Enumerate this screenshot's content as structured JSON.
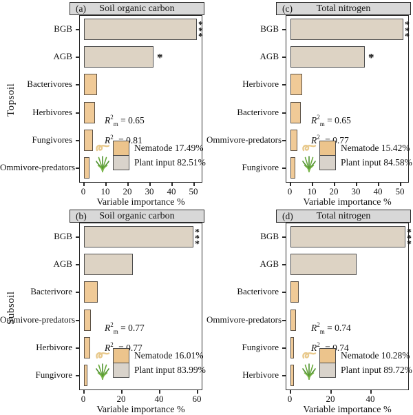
{
  "figure": {
    "row_labels": [
      "Topsoil",
      "Subsoil"
    ],
    "x_axis_title": "Variable importance %"
  },
  "colors": {
    "plant_bar": "#ddd3c4",
    "nematode_bar": "#f0ca97",
    "legend_plant_swatch": "#d9d3cb",
    "legend_nematode_swatch": "#ecc48c",
    "header_bg": "#d8d8d8",
    "border": "#2a2a2a",
    "worm_icon": "#e8c98c",
    "grass_icon": "#4e8f2f"
  },
  "chart_data": [
    {
      "id": "a",
      "type": "bar",
      "tag": "(a)",
      "title": "Soil organic carbon",
      "row": "Topsoil",
      "xlabel": "Variable importance %",
      "xlim": [
        0,
        53
      ],
      "xticks": [
        0,
        10,
        20,
        30,
        40,
        50
      ],
      "categories": [
        "BGB",
        "AGB",
        "Bacterivores",
        "Herbivores",
        "Fungivores",
        "Ommivore-predators"
      ],
      "values": [
        51,
        31.5,
        5.8,
        5.0,
        4.2,
        2.5
      ],
      "groups": [
        "plant",
        "plant",
        "nematode",
        "nematode",
        "nematode",
        "nematode"
      ],
      "significance": [
        "***",
        "*",
        "",
        "",
        "",
        ""
      ],
      "r2": [
        {
          "sub": "m",
          "val": "0.65"
        },
        {
          "sub": "c",
          "val": "0.81"
        }
      ],
      "legend": [
        {
          "icon": "nematode-icon",
          "key": "nematode",
          "label": "Nematode",
          "value": "17.49%",
          "color": "#ecc48c"
        },
        {
          "icon": "grass-icon",
          "key": "plant",
          "label": "Plant input",
          "value": "82.51%",
          "color": "#d9d3cb"
        }
      ]
    },
    {
      "id": "c",
      "type": "bar",
      "tag": "(c)",
      "title": "Total nitrogen",
      "row": "Topsoil",
      "xlabel": "Variable importance %",
      "xlim": [
        0,
        53
      ],
      "xticks": [
        0,
        10,
        20,
        30,
        40,
        50
      ],
      "categories": [
        "BGB",
        "AGB",
        "Herbivore",
        "Bacterivore",
        "Ommivore-predators",
        "Fungivore"
      ],
      "values": [
        51,
        33.6,
        5.2,
        4.7,
        3.2,
        2.3
      ],
      "groups": [
        "plant",
        "plant",
        "nematode",
        "nematode",
        "nematode",
        "nematode"
      ],
      "significance": [
        "***",
        "*",
        "",
        "",
        "",
        ""
      ],
      "r2": [
        {
          "sub": "m",
          "val": "0.65"
        },
        {
          "sub": "c",
          "val": "0.77"
        }
      ],
      "legend": [
        {
          "icon": "nematode-icon",
          "key": "nematode",
          "label": "Nematode",
          "value": "15.42%",
          "color": "#ecc48c"
        },
        {
          "icon": "grass-icon",
          "key": "plant",
          "label": "Plant input",
          "value": "84.58%",
          "color": "#d9d3cb"
        }
      ]
    },
    {
      "id": "b",
      "type": "bar",
      "tag": "(b)",
      "title": "Soil organic carbon",
      "row": "Subsoil",
      "xlabel": "Variable importance %",
      "xlim": [
        0,
        62
      ],
      "xticks": [
        0,
        20,
        40,
        60
      ],
      "categories": [
        "BGB",
        "AGB",
        "Bacterivore",
        "Ommivore-predators",
        "Herbivore",
        "Fungivore"
      ],
      "values": [
        58,
        26,
        7.4,
        3.7,
        3.1,
        1.8
      ],
      "groups": [
        "plant",
        "plant",
        "nematode",
        "nematode",
        "nematode",
        "nematode"
      ],
      "significance": [
        "***",
        "",
        "",
        "",
        "",
        ""
      ],
      "r2": [
        {
          "sub": "m",
          "val": "0.77"
        },
        {
          "sub": "c",
          "val": "0.77"
        }
      ],
      "legend": [
        {
          "icon": "nematode-icon",
          "key": "nematode",
          "label": "Nematode",
          "value": "16.01%",
          "color": "#ecc48c"
        },
        {
          "icon": "grass-icon",
          "key": "plant",
          "label": "Plant input",
          "value": "83.99%",
          "color": "#d9d3cb"
        }
      ]
    },
    {
      "id": "d",
      "type": "bar",
      "tag": "(d)",
      "title": "Total nitrogen",
      "row": "Subsoil",
      "xlabel": "Variable importance %",
      "xlim": [
        0,
        58
      ],
      "xticks": [
        0,
        20,
        40
      ],
      "categories": [
        "BGB",
        "AGB",
        "Bacterivore",
        "Ommivore-predators",
        "Fungivore",
        "Herbivore"
      ],
      "values": [
        57,
        32.7,
        4.2,
        2.7,
        1.8,
        1.6
      ],
      "groups": [
        "plant",
        "plant",
        "nematode",
        "nematode",
        "nematode",
        "nematode"
      ],
      "significance": [
        "***",
        "",
        "",
        "",
        "",
        ""
      ],
      "r2": [
        {
          "sub": "m",
          "val": "0.74"
        },
        {
          "sub": "c",
          "val": "0.74"
        }
      ],
      "legend": [
        {
          "icon": "nematode-icon",
          "key": "nematode",
          "label": "Nematode",
          "value": "10.28%",
          "color": "#ecc48c"
        },
        {
          "icon": "grass-icon",
          "key": "plant",
          "label": "Plant input",
          "value": "89.72%",
          "color": "#d9d3cb"
        }
      ]
    }
  ]
}
